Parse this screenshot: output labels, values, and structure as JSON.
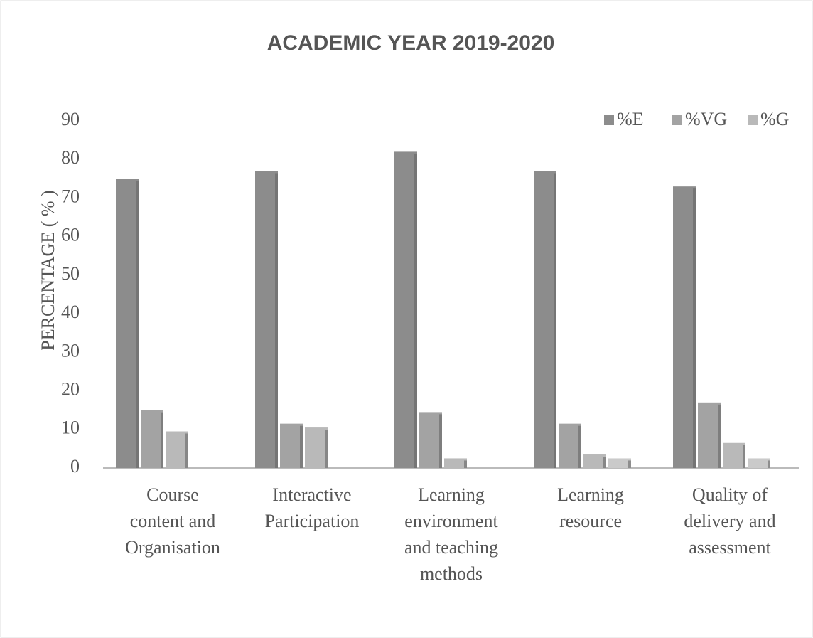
{
  "chart_data": {
    "type": "bar",
    "title": "ACADEMIC YEAR  2019-2020",
    "y_label": "PERCENTAGE ( % )",
    "categories": [
      "Course\ncontent and\nOrganisation",
      "Interactive\nParticipation",
      "Learning\nenvironment\nand teaching\nmethods",
      "Learning\nresource",
      "Quality of\ndelivery and\nassessment"
    ],
    "series": [
      {
        "name": "%E",
        "color": "#8c8c8c",
        "values": [
          75,
          77,
          82,
          77,
          73
        ]
      },
      {
        "name": "%VG",
        "color": "#a3a3a3",
        "values": [
          15,
          11.5,
          14.5,
          11.5,
          17
        ]
      },
      {
        "name": "%G",
        "color": "#b9b9b9",
        "values": [
          9.5,
          10.5,
          2.5,
          3.5,
          6.5
        ]
      },
      {
        "color": "#cacaca",
        "values": [
          0,
          0,
          0,
          2.5,
          2.5
        ]
      }
    ],
    "ylim": [
      0,
      90
    ],
    "yticks": [
      0,
      10,
      20,
      30,
      40,
      50,
      60,
      70,
      80,
      90
    ],
    "grid": false,
    "legend": "top-right"
  }
}
